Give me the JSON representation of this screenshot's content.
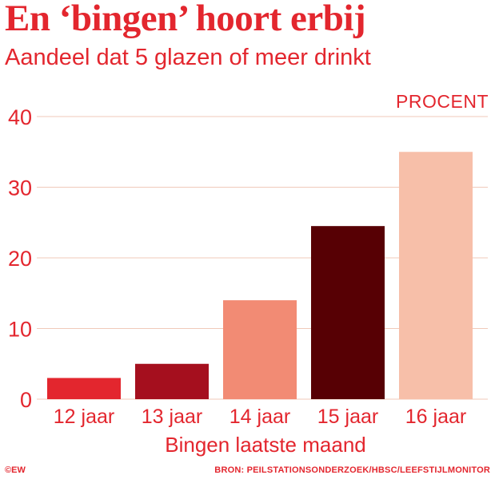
{
  "header": {
    "title": "En ‘bingen’ hoort erbij",
    "subtitle": "Aandeel dat 5 glazen of meer drinkt"
  },
  "chart_data": {
    "type": "bar",
    "unit_label": "PROCENT",
    "categories": [
      "12 jaar",
      "13 jaar",
      "14 jaar",
      "15 jaar",
      "16 jaar"
    ],
    "values": [
      3,
      5,
      14,
      24.5,
      35
    ],
    "bar_colors": [
      "#e3262e",
      "#a50f1e",
      "#f28b74",
      "#570004",
      "#f7bfa9"
    ],
    "xlabel": "Bingen laatste maand",
    "ylabel": "",
    "ylim": [
      0,
      40
    ],
    "yticks": [
      "0",
      "10",
      "20",
      "30",
      "40"
    ],
    "grid": true,
    "grid_color": "#f0c9ba",
    "text_color": "#e3262e"
  },
  "footer": {
    "credit": "©EW",
    "source": "BRON: PEILSTATIONSONDERZOEK/HBSC/LEEFSTIJLMONITOR"
  }
}
